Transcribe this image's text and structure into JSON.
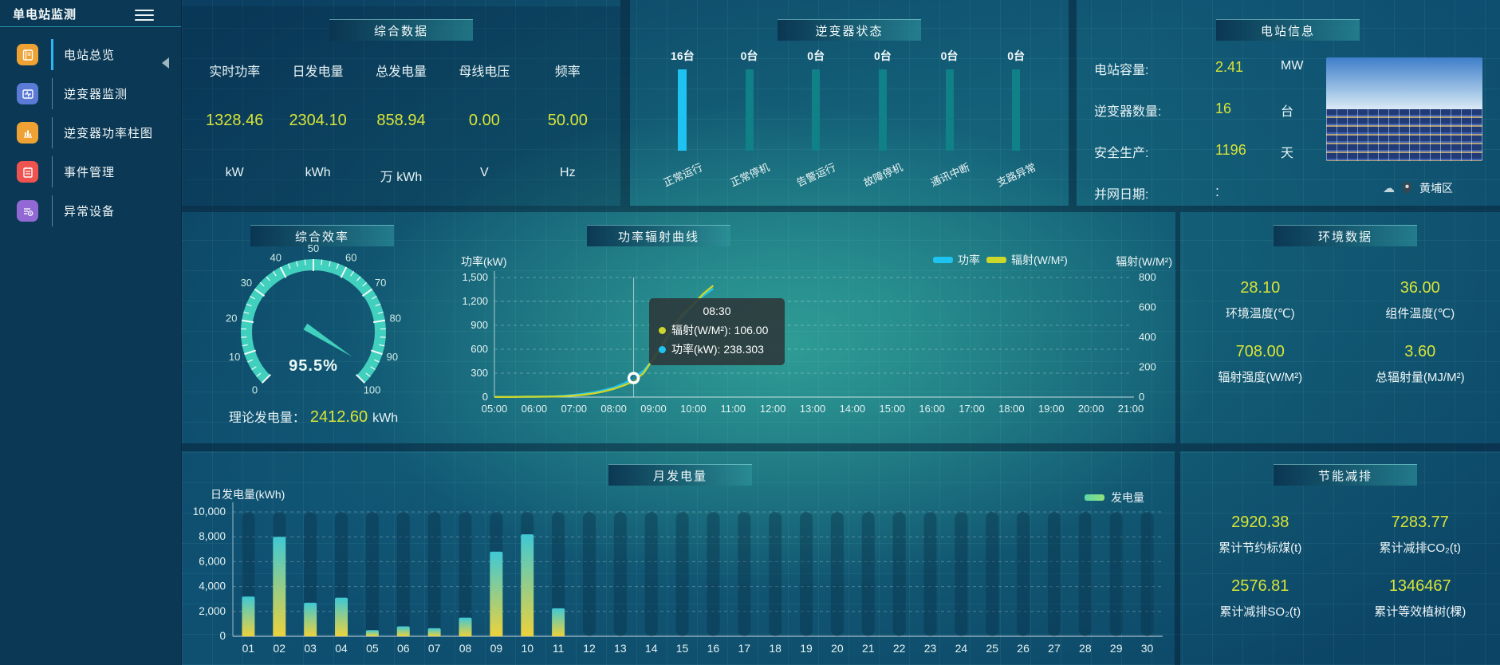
{
  "app": {
    "title": "单电站监测"
  },
  "sidebar": {
    "items": [
      {
        "label": "电站总览",
        "icon": "overview-doc",
        "color": "#eda233",
        "active": true
      },
      {
        "label": "逆变器监测",
        "icon": "inverter-monitor",
        "color": "#5a7ad6",
        "active": false
      },
      {
        "label": "逆变器功率柱图",
        "icon": "power-bars",
        "color": "#eda233",
        "active": false
      },
      {
        "label": "事件管理",
        "icon": "event-notebook",
        "color": "#ef5350",
        "active": false
      },
      {
        "label": "异常设备",
        "icon": "abnormal-device",
        "color": "#9168d4",
        "active": false
      }
    ]
  },
  "colors": {
    "accent_value": "#d8e436",
    "power_line": "#1fc3f2",
    "radiation_line": "#cdd62a",
    "status_bar_active": "#1fc3f2",
    "status_bar_idle": "#0f8187",
    "gauge": "#41d0bd",
    "bar_gradient_top": "#3fc8d4",
    "bar_gradient_bottom": "#ecd23c"
  },
  "panels": {
    "summary": {
      "title": "综合数据",
      "metrics": [
        {
          "label": "实时功率",
          "value": "1328.46",
          "unit": "kW"
        },
        {
          "label": "日发电量",
          "value": "2304.10",
          "unit": "kWh"
        },
        {
          "label": "总发电量",
          "value": "858.94",
          "unit": "万  kWh"
        },
        {
          "label": "母线电压",
          "value": "0.00",
          "unit": "V"
        },
        {
          "label": "频率",
          "value": "50.00",
          "unit": "Hz"
        }
      ]
    },
    "inverter_status": {
      "title": "逆变器状态",
      "bars": [
        {
          "count": "16台",
          "label": "正常运行",
          "highlight": true
        },
        {
          "count": "0台",
          "label": "正常停机",
          "highlight": false
        },
        {
          "count": "0台",
          "label": "告警运行",
          "highlight": false
        },
        {
          "count": "0台",
          "label": "故障停机",
          "highlight": false
        },
        {
          "count": "0台",
          "label": "通讯中断",
          "highlight": false
        },
        {
          "count": "0台",
          "label": "支路异常",
          "highlight": false
        }
      ]
    },
    "station_info": {
      "title": "电站信息",
      "rows": [
        {
          "label": "电站容量:",
          "value": "2.41",
          "unit": "MW"
        },
        {
          "label": "逆变器数量:",
          "value": "16",
          "unit": "台"
        },
        {
          "label": "安全生产:",
          "value": "1196",
          "unit": "天"
        },
        {
          "label": "并网日期:",
          "value": ":",
          "unit": ""
        }
      ],
      "location": "黄埔区"
    },
    "efficiency": {
      "title": "综合效率",
      "gauge_label": "95.5%",
      "footer_label": "理论发电量：",
      "footer_value": "2412.60",
      "footer_unit": "kWh"
    },
    "environment": {
      "title": "环境数据",
      "items": [
        {
          "value": "28.10",
          "label": "环境温度(℃)"
        },
        {
          "value": "36.00",
          "label": "组件温度(℃)"
        },
        {
          "value": "708.00",
          "label": "辐射强度(W/M²)"
        },
        {
          "value": "3.60",
          "label": "总辐射量(MJ/M²)"
        }
      ]
    },
    "savings": {
      "title": "节能减排",
      "items": [
        {
          "value": "2920.38",
          "label": "累计节约标煤(t)"
        },
        {
          "value": "7283.77",
          "label": "累计减排CO₂(t)"
        },
        {
          "value": "2576.81",
          "label": "累计减排SO₂(t)"
        },
        {
          "value": "1346467",
          "label": "累计等效植树(棵)"
        }
      ]
    }
  },
  "chart_data": [
    {
      "id": "inverter_status",
      "type": "bar",
      "title": "逆变器状态",
      "categories": [
        "正常运行",
        "正常停机",
        "告警运行",
        "故障停机",
        "通讯中断",
        "支路异常"
      ],
      "values": [
        16,
        0,
        0,
        0,
        0,
        0
      ],
      "unit": "台"
    },
    {
      "id": "efficiency_gauge",
      "type": "gauge",
      "title": "综合效率",
      "min": 0,
      "max": 100,
      "value": 95.5,
      "unit": "%",
      "major_tick": 10,
      "minor_tick": 2.5
    },
    {
      "id": "power_radiation",
      "type": "line",
      "title": "功率辐射曲线",
      "x": [
        5,
        5.25,
        5.5,
        5.75,
        6,
        6.25,
        6.5,
        6.75,
        7,
        7.25,
        7.5,
        7.75,
        8,
        8.25,
        8.5,
        8.75,
        9,
        9.25,
        9.5,
        9.75,
        10,
        10.25,
        10.5
      ],
      "x_ticks": [
        "05:00",
        "06:00",
        "07:00",
        "08:00",
        "09:00",
        "10:00",
        "11:00",
        "12:00",
        "13:00",
        "14:00",
        "15:00",
        "16:00",
        "17:00",
        "18:00",
        "19:00",
        "20:00",
        "21:00"
      ],
      "x_range": [
        5,
        21
      ],
      "series": [
        {
          "name": "功率",
          "axis": "left",
          "color": "#1fc3f2",
          "values": [
            2,
            2,
            3,
            4,
            5,
            7,
            10,
            17,
            28,
            42,
            60,
            88,
            120,
            170,
            238.3,
            330,
            480,
            650,
            850,
            1020,
            1150,
            1270,
            1360
          ]
        },
        {
          "name": "辐射(W/M²)",
          "axis": "right",
          "color": "#cdd62a",
          "values": [
            1,
            1,
            1,
            2,
            2,
            3,
            4,
            6,
            10,
            16,
            25,
            38,
            55,
            78,
            106,
            160,
            260,
            360,
            470,
            560,
            620,
            690,
            745
          ]
        }
      ],
      "left_axis": {
        "label": "功率(kW)",
        "min": 0,
        "max": 1500,
        "ticks": [
          0,
          300,
          600,
          900,
          1200,
          1500
        ]
      },
      "right_axis": {
        "label": "辐射(W/M²)",
        "min": 0,
        "max": 800,
        "ticks": [
          0,
          200,
          400,
          600,
          800
        ]
      },
      "tooltip": {
        "x": 8.5,
        "time": "08:30",
        "rows": [
          {
            "color": "#cdd62a",
            "text": "辐射(W/M²): 106.00"
          },
          {
            "color": "#1fc3f2",
            "text": "功率(kW): 238.303"
          }
        ]
      }
    },
    {
      "id": "monthly_energy",
      "type": "bar",
      "title": "月发电量",
      "ylabel": "日发电量(kWh)",
      "legend": "发电量",
      "categories": [
        "01",
        "02",
        "03",
        "04",
        "05",
        "06",
        "07",
        "08",
        "09",
        "10",
        "11",
        "12",
        "13",
        "14",
        "15",
        "16",
        "17",
        "18",
        "19",
        "20",
        "21",
        "22",
        "23",
        "24",
        "25",
        "26",
        "27",
        "28",
        "29",
        "30"
      ],
      "values": [
        3200,
        8000,
        2700,
        3100,
        500,
        800,
        650,
        1500,
        6800,
        8200,
        2250,
        0,
        0,
        0,
        0,
        0,
        0,
        0,
        0,
        0,
        0,
        0,
        0,
        0,
        0,
        0,
        0,
        0,
        0,
        0
      ],
      "ylim": [
        0,
        10000
      ],
      "yticks": [
        0,
        2000,
        4000,
        6000,
        8000,
        10000
      ]
    }
  ]
}
